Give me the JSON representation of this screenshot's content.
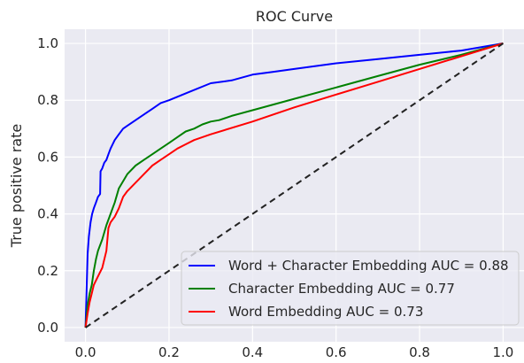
{
  "chart_data": {
    "type": "line",
    "title": "ROC Curve",
    "xlabel": "",
    "ylabel": "True positive rate",
    "xlim": [
      -0.05,
      1.05
    ],
    "ylim": [
      -0.05,
      1.05
    ],
    "x_ticks": [
      "0.0",
      "0.2",
      "0.4",
      "0.6",
      "0.8",
      "1.0"
    ],
    "y_ticks": [
      "0.0",
      "0.2",
      "0.4",
      "0.6",
      "0.8",
      "1.0"
    ],
    "x_tick_values": [
      0,
      0.2,
      0.4,
      0.6,
      0.8,
      1.0
    ],
    "y_tick_values": [
      0,
      0.2,
      0.4,
      0.6,
      0.8,
      1.0
    ],
    "grid": true,
    "background": "#eaeaf2",
    "legend_position": "lower-right",
    "series": [
      {
        "name": "Word + Character Embedding AUC = 0.88",
        "color": "#0000ff",
        "x": [
          0,
          0.003,
          0.005,
          0.008,
          0.012,
          0.016,
          0.02,
          0.025,
          0.03,
          0.035,
          0.036,
          0.04,
          0.045,
          0.05,
          0.055,
          0.06,
          0.07,
          0.08,
          0.09,
          0.1,
          0.12,
          0.14,
          0.16,
          0.18,
          0.2,
          0.25,
          0.3,
          0.35,
          0.4,
          0.45,
          0.5,
          0.6,
          0.7,
          0.8,
          0.9,
          1.0
        ],
        "y": [
          0,
          0.15,
          0.26,
          0.32,
          0.37,
          0.4,
          0.42,
          0.44,
          0.46,
          0.47,
          0.55,
          0.56,
          0.58,
          0.59,
          0.61,
          0.63,
          0.66,
          0.68,
          0.7,
          0.71,
          0.73,
          0.75,
          0.77,
          0.79,
          0.8,
          0.83,
          0.86,
          0.87,
          0.89,
          0.9,
          0.91,
          0.93,
          0.945,
          0.96,
          0.975,
          1.0
        ]
      },
      {
        "name": "Character Embedding AUC = 0.77",
        "color": "#008000",
        "x": [
          0,
          0.005,
          0.01,
          0.015,
          0.02,
          0.025,
          0.03,
          0.04,
          0.05,
          0.06,
          0.07,
          0.08,
          0.1,
          0.12,
          0.14,
          0.16,
          0.18,
          0.2,
          0.22,
          0.24,
          0.26,
          0.28,
          0.3,
          0.32,
          0.35,
          0.4,
          0.5,
          0.6,
          0.7,
          0.8,
          0.9,
          1.0
        ],
        "y": [
          0,
          0.08,
          0.12,
          0.15,
          0.2,
          0.24,
          0.27,
          0.31,
          0.36,
          0.4,
          0.44,
          0.49,
          0.54,
          0.57,
          0.59,
          0.61,
          0.63,
          0.65,
          0.67,
          0.69,
          0.7,
          0.715,
          0.725,
          0.73,
          0.745,
          0.765,
          0.805,
          0.845,
          0.885,
          0.925,
          0.96,
          1.0
        ]
      },
      {
        "name": "Word Embedding AUC = 0.73",
        "color": "#ff0000",
        "x": [
          0,
          0.005,
          0.01,
          0.015,
          0.02,
          0.03,
          0.04,
          0.05,
          0.055,
          0.06,
          0.07,
          0.08,
          0.09,
          0.1,
          0.12,
          0.14,
          0.16,
          0.18,
          0.2,
          0.22,
          0.24,
          0.26,
          0.3,
          0.4,
          0.5,
          0.6,
          0.7,
          0.8,
          0.9,
          1.0
        ],
        "y": [
          0,
          0.05,
          0.09,
          0.12,
          0.15,
          0.18,
          0.21,
          0.27,
          0.35,
          0.37,
          0.39,
          0.42,
          0.46,
          0.48,
          0.51,
          0.54,
          0.57,
          0.59,
          0.61,
          0.63,
          0.645,
          0.66,
          0.68,
          0.725,
          0.775,
          0.82,
          0.865,
          0.91,
          0.955,
          1.0
        ]
      },
      {
        "name": "",
        "color": "#222222",
        "dashed": true,
        "x": [
          0,
          1
        ],
        "y": [
          0,
          1
        ]
      }
    ],
    "legend": [
      {
        "label": "Word + Character Embedding AUC = 0.88",
        "color": "#0000ff"
      },
      {
        "label": "Character Embedding AUC = 0.77",
        "color": "#008000"
      },
      {
        "label": "Word Embedding AUC = 0.73",
        "color": "#ff0000"
      }
    ]
  }
}
